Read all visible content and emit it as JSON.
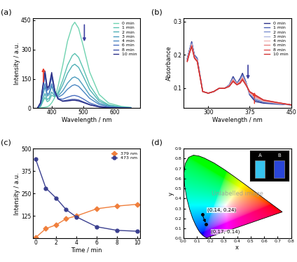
{
  "chart_data": [
    {
      "type": "line",
      "title": "(a)",
      "x_label": "Wavelength / nm",
      "y_label": "Intensity / a.u.",
      "x": [
        355,
        365,
        372,
        379,
        386,
        392,
        400,
        410,
        420,
        435,
        450,
        465,
        473,
        485,
        500,
        520,
        550,
        580,
        620,
        650
      ],
      "series": [
        {
          "name": "0 min",
          "color": "#6fd3b0",
          "values": [
            0,
            1,
            3,
            5,
            7,
            12,
            27,
            55,
            111,
            220,
            343,
            422,
            440,
            409,
            317,
            185,
            70,
            26,
            9,
            4
          ]
        },
        {
          "name": "1 min",
          "color": "#59c2b0",
          "values": [
            0,
            8,
            33,
            55,
            33,
            39,
            66,
            58,
            81,
            144,
            220,
            269,
            280,
            260,
            202,
            118,
            45,
            17,
            6,
            3
          ]
        },
        {
          "name": "2 min",
          "color": "#4fb0b5",
          "values": [
            0,
            11,
            45,
            75,
            44,
            50,
            83,
            61,
            71,
            119,
            178,
            217,
            225,
            209,
            162,
            95,
            36,
            14,
            5,
            2
          ]
        },
        {
          "name": "3 min",
          "color": "#4b9bbd",
          "values": [
            0,
            17,
            66,
            110,
            62,
            69,
            113,
            69,
            62,
            89,
            128,
            155,
            160,
            149,
            115,
            67,
            26,
            10,
            3,
            2
          ]
        },
        {
          "name": "4 min",
          "color": "#4a86c2",
          "values": [
            0,
            19,
            75,
            125,
            70,
            77,
            125,
            71,
            55,
            70,
            97,
            116,
            120,
            112,
            86,
            50,
            19,
            7,
            2,
            1
          ]
        },
        {
          "name": "6 min",
          "color": "#4a6fbf",
          "values": [
            0,
            25,
            99,
            165,
            91,
            100,
            160,
            82,
            49,
            46,
            56,
            64,
            65,
            60,
            47,
            27,
            10,
            4,
            1,
            1
          ]
        },
        {
          "name": "8 min",
          "color": "#3d4fa8",
          "values": [
            0,
            27,
            108,
            180,
            99,
            109,
            173,
            86,
            47,
            37,
            41,
            45,
            45,
            42,
            32,
            19,
            7,
            3,
            1,
            0
          ]
        },
        {
          "name": "10 min",
          "color": "#2b2f86",
          "values": [
            0,
            29,
            114,
            190,
            105,
            115,
            183,
            90,
            48,
            35,
            37,
            40,
            40,
            37,
            29,
            17,
            6,
            2,
            1,
            0
          ]
        }
      ],
      "xlim": [
        340,
        680
      ],
      "xticks": [
        400,
        500,
        600
      ],
      "ylim": [
        0,
        460
      ],
      "yticks": [
        0,
        150,
        300,
        450
      ],
      "legend": "upper right"
    },
    {
      "type": "line",
      "title": "(b)",
      "x_label": "Wavelength / nm",
      "y_label": "Absorbance",
      "x": [
        262,
        266,
        270,
        275,
        280,
        290,
        300,
        310,
        320,
        330,
        338,
        345,
        352,
        358,
        362,
        368,
        375,
        385,
        400,
        425,
        450
      ],
      "series": [
        {
          "name": "0 min",
          "color": "#2b2f86",
          "values": [
            0.19,
            0.215,
            0.24,
            0.2,
            0.19,
            0.09,
            0.085,
            0.09,
            0.1,
            0.1,
            0.11,
            0.135,
            0.115,
            0.13,
            0.145,
            0.12,
            0.08,
            0.06,
            0.055,
            0.052,
            0.05
          ]
        },
        {
          "name": "1 min",
          "color": "#4a5fb5",
          "values": [
            0.188,
            0.213,
            0.237,
            0.198,
            0.188,
            0.09,
            0.085,
            0.09,
            0.1,
            0.1,
            0.109,
            0.132,
            0.114,
            0.127,
            0.141,
            0.118,
            0.082,
            0.064,
            0.057,
            0.053,
            0.05
          ]
        },
        {
          "name": "2 min",
          "color": "#7b8fd0",
          "values": [
            0.187,
            0.212,
            0.235,
            0.197,
            0.187,
            0.09,
            0.085,
            0.09,
            0.1,
            0.1,
            0.108,
            0.13,
            0.113,
            0.125,
            0.138,
            0.117,
            0.084,
            0.067,
            0.059,
            0.054,
            0.05
          ]
        },
        {
          "name": "3 min",
          "color": "#b0b8e0",
          "values": [
            0.185,
            0.21,
            0.233,
            0.195,
            0.185,
            0.09,
            0.085,
            0.09,
            0.1,
            0.1,
            0.108,
            0.128,
            0.113,
            0.123,
            0.135,
            0.115,
            0.085,
            0.07,
            0.06,
            0.055,
            0.05
          ]
        },
        {
          "name": "4 min",
          "color": "#f0b8b8",
          "values": [
            0.184,
            0.209,
            0.231,
            0.194,
            0.184,
            0.09,
            0.085,
            0.09,
            0.1,
            0.1,
            0.107,
            0.126,
            0.112,
            0.121,
            0.133,
            0.114,
            0.086,
            0.072,
            0.061,
            0.055,
            0.05
          ]
        },
        {
          "name": "6 min",
          "color": "#e88080",
          "values": [
            0.183,
            0.208,
            0.229,
            0.193,
            0.183,
            0.09,
            0.085,
            0.09,
            0.1,
            0.1,
            0.106,
            0.124,
            0.111,
            0.119,
            0.13,
            0.113,
            0.088,
            0.075,
            0.063,
            0.056,
            0.05
          ]
        },
        {
          "name": "8 min",
          "color": "#e05050",
          "values": [
            0.181,
            0.206,
            0.227,
            0.191,
            0.181,
            0.09,
            0.085,
            0.09,
            0.1,
            0.1,
            0.106,
            0.122,
            0.111,
            0.117,
            0.127,
            0.111,
            0.089,
            0.078,
            0.064,
            0.057,
            0.05
          ]
        },
        {
          "name": "10 min",
          "color": "#d03030",
          "values": [
            0.18,
            0.205,
            0.225,
            0.19,
            0.18,
            0.09,
            0.085,
            0.09,
            0.1,
            0.1,
            0.105,
            0.12,
            0.11,
            0.115,
            0.125,
            0.11,
            0.09,
            0.08,
            0.065,
            0.057,
            0.05
          ]
        }
      ],
      "xlim": [
        255,
        450
      ],
      "xticks": [
        300,
        375,
        450
      ],
      "ylim": [
        0.04,
        0.31
      ],
      "yticks": [
        0.1,
        0.2,
        0.3
      ],
      "legend": "upper right"
    },
    {
      "type": "line",
      "title": "(c)",
      "x_label": "Time / min",
      "y_label": "Intensity / a.u.",
      "x": [
        0,
        1,
        2,
        3,
        4,
        6,
        8,
        10
      ],
      "series": [
        {
          "name": "379 nm",
          "color": "#f07f3c",
          "marker": "diamond",
          "values": [
            5,
            55,
            75,
            110,
            125,
            165,
            180,
            190
          ]
        },
        {
          "name": "473 nm",
          "color": "#3a3f8f",
          "marker": "circle",
          "values": [
            440,
            280,
            225,
            160,
            120,
            65,
            45,
            40
          ]
        }
      ],
      "xlim": [
        -0.3,
        10.3
      ],
      "xticks": [
        0,
        2,
        4,
        6,
        8,
        10
      ],
      "ylim": [
        0,
        500
      ],
      "yticks": [
        125,
        250,
        375,
        500
      ],
      "legend": "upper right"
    },
    {
      "type": "chromaticity",
      "title": "(d)",
      "x_label": "x",
      "y_label": "y",
      "locus": {
        "x": [
          0.1741,
          0.1714,
          0.1644,
          0.1566,
          0.144,
          0.1241,
          0.1096,
          0.0913,
          0.0687,
          0.0454,
          0.0235,
          0.0082,
          0.0039,
          0.0139,
          0.0389,
          0.0743,
          0.1142,
          0.1547,
          0.2296,
          0.3016,
          0.3731,
          0.4441,
          0.5125,
          0.5752,
          0.627,
          0.6915,
          0.719,
          0.7347
        ],
        "y": [
          0.005,
          0.0051,
          0.0109,
          0.0177,
          0.0297,
          0.0578,
          0.0868,
          0.1327,
          0.2007,
          0.295,
          0.4127,
          0.5384,
          0.6548,
          0.7502,
          0.812,
          0.8338,
          0.8262,
          0.8059,
          0.7543,
          0.6923,
          0.6245,
          0.5547,
          0.4866,
          0.4242,
          0.3725,
          0.3083,
          0.2809,
          0.2653
        ]
      },
      "points": {
        "x": [
          0.14,
          0.17
        ],
        "y": [
          0.24,
          0.14
        ],
        "labels": [
          "(0.14, 0.24)",
          "(0.17, 0.14)"
        ]
      },
      "insets": [
        {
          "label": "A",
          "color": "#36c3ee"
        },
        {
          "label": "B",
          "color": "#2a46d8"
        }
      ],
      "annotations": [
        "Unlabelled image"
      ],
      "xlim": [
        0.0,
        0.8
      ],
      "xticks": [
        0.0,
        0.1,
        0.2,
        0.3,
        0.4,
        0.5,
        0.6,
        0.7,
        0.8
      ],
      "ylim": [
        0.0,
        0.9
      ],
      "yticks": [
        0.0,
        0.1,
        0.2,
        0.3,
        0.4,
        0.5,
        0.6,
        0.7,
        0.8,
        0.9
      ]
    }
  ]
}
